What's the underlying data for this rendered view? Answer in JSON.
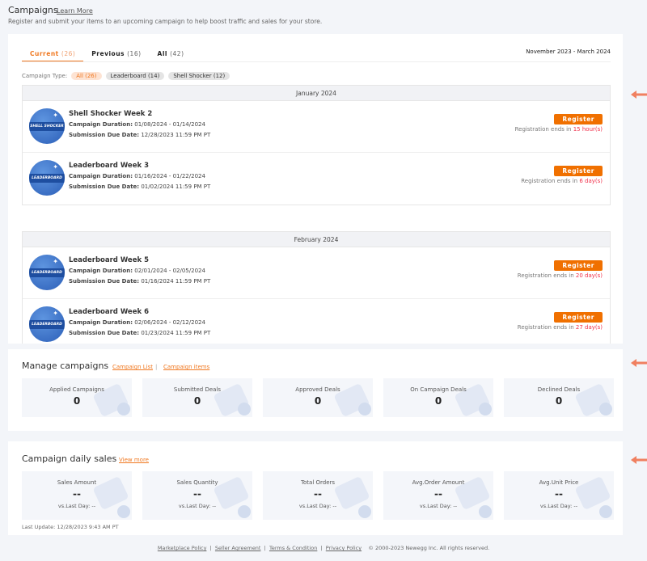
{
  "header": {
    "title": "Campaigns",
    "learn_more": "Learn More",
    "subtitle": "Register and submit your items to an upcoming campaign to help boost traffic and sales for your store."
  },
  "tabs": [
    {
      "label": "Current",
      "count": "(26)"
    },
    {
      "label": "Previous",
      "count": "(16)"
    },
    {
      "label": "All",
      "count": "(42)"
    }
  ],
  "date_range": "November 2023 - March 2024",
  "campaign_type": {
    "label": "Campaign Type:",
    "chips": [
      "All (26)",
      "Leaderboard (14)",
      "Shell Shocker (12)"
    ]
  },
  "months": [
    {
      "label": "January 2024",
      "items": [
        {
          "logo": "SHELL SHOCKER",
          "name": "Shell Shocker Week 2",
          "duration": "01/08/2024 - 01/14/2024",
          "due": "12/28/2023 11:59 PM PT",
          "ends": "15 hour(s)"
        },
        {
          "logo": "LEADERBOARD",
          "name": "Leaderboard Week 3",
          "duration": "01/16/2024 - 01/22/2024",
          "due": "01/02/2024 11:59 PM PT",
          "ends": "6 day(s)"
        }
      ]
    },
    {
      "label": "February 2024",
      "items": [
        {
          "logo": "LEADERBOARD",
          "name": "Leaderboard Week 5",
          "duration": "02/01/2024 - 02/05/2024",
          "due": "01/16/2024 11:59 PM PT",
          "ends": "20 day(s)"
        },
        {
          "logo": "LEADERBOARD",
          "name": "Leaderboard Week 6",
          "duration": "02/06/2024 - 02/12/2024",
          "due": "01/23/2024 11:59 PM PT",
          "ends": "27 day(s)"
        }
      ]
    }
  ],
  "labels": {
    "duration": "Campaign Duration:",
    "due": "Submission Due Date:",
    "register": "Register",
    "ends_prefix": "Registration ends in "
  },
  "manage": {
    "title": "Manage campaigns",
    "link1": "Campaign List",
    "sep": "|",
    "link2": "Campaign items",
    "tiles": [
      {
        "label": "Applied Campaigns",
        "value": "0"
      },
      {
        "label": "Submitted Deals",
        "value": "0"
      },
      {
        "label": "Approved Deals",
        "value": "0"
      },
      {
        "label": "On Campaign Deals",
        "value": "0"
      },
      {
        "label": "Declined Deals",
        "value": "0"
      }
    ]
  },
  "sales": {
    "title": "Campaign daily sales",
    "link": "View more",
    "tiles": [
      {
        "label": "Sales Amount",
        "value": "--",
        "vs": "vs.Last Day: --"
      },
      {
        "label": "Sales Quantity",
        "value": "--",
        "vs": "vs.Last Day: --"
      },
      {
        "label": "Total Orders",
        "value": "--",
        "vs": "vs.Last Day: --"
      },
      {
        "label": "Avg.Order Amount",
        "value": "--",
        "vs": "vs.Last Day: --"
      },
      {
        "label": "Avg.Unit Price",
        "value": "--",
        "vs": "vs.Last Day: --"
      }
    ],
    "last_update": "Last Update: 12/28/2023 9:43 AM PT"
  },
  "footer": {
    "links": [
      "Marketplace Policy",
      "Seller Agreement",
      "Terms & Condition",
      "Privacy Policy"
    ],
    "copyright": "© 2000-2023 Newegg Inc. All rights reserved."
  },
  "colors": {
    "accent": "#f07000",
    "danger": "#f0304a",
    "arrow": "#f08060"
  }
}
